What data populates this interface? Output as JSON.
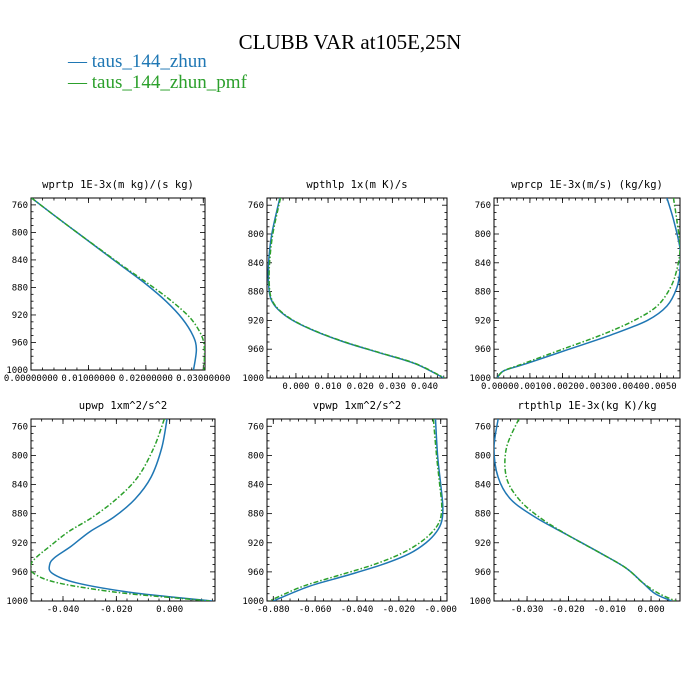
{
  "title": "CLUBB VAR at105E,25N",
  "legend": [
    {
      "label": "taus_144_zhun",
      "color": "#1f77b4",
      "style": "solid"
    },
    {
      "label": "taus_144_zhun_pmf",
      "color": "#2ca02c",
      "style": "dash-dot"
    }
  ],
  "chart_data": [
    {
      "type": "line",
      "title": "wprtp  1E-3x(m kg)/(s kg)",
      "xlim": [
        0,
        0.0303
      ],
      "ylim": [
        750,
        1000
      ],
      "y_inverted": true,
      "xticks": [
        0,
        0.01,
        0.02,
        0.03
      ],
      "xtick_labels": [
        "0.00000000",
        "0.01000000",
        "0.02000000",
        "0.03000000"
      ],
      "yticks": [
        760,
        800,
        840,
        880,
        920,
        960,
        1000
      ],
      "series": [
        {
          "name": "taus_144_zhun",
          "x": [
            0.0001,
            0.004,
            0.008,
            0.012,
            0.016,
            0.02,
            0.0235,
            0.0263,
            0.0282,
            0.0288,
            0.0283
          ],
          "y": [
            750,
            775,
            800,
            825,
            850,
            875,
            900,
            925,
            950,
            970,
            1000
          ]
        },
        {
          "name": "taus_144_zhun_pmf",
          "x": [
            0.0001,
            0.004,
            0.008,
            0.0121,
            0.0162,
            0.0205,
            0.0245,
            0.0278,
            0.0297,
            0.0302,
            0.0301
          ],
          "y": [
            750,
            775,
            800,
            825,
            850,
            875,
            900,
            925,
            950,
            970,
            1000
          ]
        }
      ]
    },
    {
      "type": "line",
      "title": "wpthlp  1x(m K)/s",
      "xlim": [
        -0.009,
        0.047
      ],
      "ylim": [
        750,
        1000
      ],
      "y_inverted": true,
      "xticks": [
        0,
        0.01,
        0.02,
        0.03,
        0.04
      ],
      "xtick_labels": [
        "0.000",
        "0.010",
        "0.020",
        "0.030",
        "0.040"
      ],
      "yticks": [
        760,
        800,
        840,
        880,
        920,
        960,
        1000
      ],
      "series": [
        {
          "name": "taus_144_zhun",
          "x": [
            -0.005,
            -0.0075,
            -0.0085,
            -0.0085,
            -0.0078,
            -0.0055,
            -0.001,
            0.006,
            0.015,
            0.026,
            0.037,
            0.046
          ],
          "y": [
            750,
            800,
            840,
            870,
            890,
            905,
            920,
            935,
            950,
            965,
            980,
            1000
          ]
        },
        {
          "name": "taus_144_zhun_pmf",
          "x": [
            -0.0048,
            -0.0072,
            -0.0082,
            -0.0083,
            -0.0076,
            -0.0053,
            -0.0008,
            0.0062,
            0.0152,
            0.0262,
            0.0372,
            0.0462
          ],
          "y": [
            750,
            800,
            840,
            870,
            890,
            905,
            920,
            935,
            950,
            965,
            980,
            1000
          ]
        }
      ]
    },
    {
      "type": "line",
      "title": "wprcp  1E-3x(m/s) (kg/kg)",
      "xlim": [
        -0.0001,
        0.0056
      ],
      "ylim": [
        750,
        1000
      ],
      "y_inverted": true,
      "xticks": [
        0,
        0.001,
        0.002,
        0.003,
        0.004,
        0.005
      ],
      "xtick_labels": [
        "0.0000",
        "0.0010",
        "0.0020",
        "0.0030",
        "0.0040",
        "0.0050"
      ],
      "yticks": [
        760,
        800,
        840,
        880,
        920,
        960,
        1000
      ],
      "series": [
        {
          "name": "taus_144_zhun",
          "x": [
            0.0052,
            0.0054,
            0.0056,
            0.0056,
            0.0055,
            0.0052,
            0.0046,
            0.0035,
            0.0022,
            0.0009,
            0.0002,
            0.0
          ],
          "y": [
            750,
            780,
            820,
            850,
            875,
            900,
            920,
            940,
            960,
            980,
            990,
            1000
          ]
        },
        {
          "name": "taus_144_zhun_pmf",
          "x": [
            0.0054,
            0.0055,
            0.0056,
            0.0055,
            0.0053,
            0.0049,
            0.0042,
            0.0032,
            0.002,
            0.0008,
            0.0002,
            0.0
          ],
          "y": [
            750,
            780,
            820,
            850,
            875,
            900,
            920,
            940,
            960,
            980,
            990,
            1000
          ]
        }
      ]
    },
    {
      "type": "line",
      "title": "upwp  1xm^2/s^2",
      "xlim": [
        -0.052,
        0.017
      ],
      "ylim": [
        750,
        1000
      ],
      "y_inverted": true,
      "xticks": [
        -0.04,
        -0.02,
        0
      ],
      "xtick_labels": [
        "-0.040",
        "-0.020",
        "0.000"
      ],
      "yticks": [
        760,
        800,
        840,
        880,
        920,
        960,
        1000
      ],
      "series": [
        {
          "name": "taus_144_zhun",
          "x": [
            -0.001,
            -0.003,
            -0.007,
            -0.013,
            -0.021,
            -0.03,
            -0.037,
            -0.043,
            -0.045,
            -0.044,
            -0.035,
            -0.015,
            0.005,
            0.016
          ],
          "y": [
            750,
            790,
            830,
            860,
            885,
            905,
            925,
            940,
            950,
            962,
            975,
            988,
            996,
            1000
          ]
        },
        {
          "name": "taus_144_zhun_pmf",
          "x": [
            -0.002,
            -0.006,
            -0.012,
            -0.02,
            -0.029,
            -0.038,
            -0.045,
            -0.05,
            -0.052,
            -0.051,
            -0.042,
            -0.02,
            0.003,
            0.015
          ],
          "y": [
            750,
            790,
            830,
            860,
            885,
            905,
            925,
            940,
            950,
            962,
            975,
            988,
            996,
            1000
          ]
        }
      ]
    },
    {
      "type": "line",
      "title": "vpwp  1xm^2/s^2",
      "xlim": [
        -0.083,
        0.003
      ],
      "ylim": [
        750,
        1000
      ],
      "y_inverted": true,
      "xticks": [
        -0.08,
        -0.06,
        -0.04,
        -0.02,
        0
      ],
      "xtick_labels": [
        "-0.080",
        "-0.060",
        "-0.040",
        "-0.020",
        "-0.000"
      ],
      "yticks": [
        760,
        800,
        840,
        880,
        920,
        960,
        1000
      ],
      "series": [
        {
          "name": "taus_144_zhun",
          "x": [
            -0.0025,
            -0.0015,
            0.0,
            0.001,
            0.0005,
            -0.002,
            -0.007,
            -0.015,
            -0.028,
            -0.045,
            -0.063,
            -0.08
          ],
          "y": [
            750,
            800,
            840,
            870,
            890,
            905,
            920,
            935,
            950,
            965,
            980,
            1000
          ]
        },
        {
          "name": "taus_144_zhun_pmf",
          "x": [
            -0.0035,
            -0.002,
            -0.0005,
            0.0005,
            -0.0005,
            -0.004,
            -0.01,
            -0.019,
            -0.032,
            -0.049,
            -0.066,
            -0.082
          ],
          "y": [
            750,
            800,
            840,
            870,
            890,
            905,
            920,
            935,
            950,
            965,
            980,
            1000
          ]
        }
      ]
    },
    {
      "type": "line",
      "title": "rtpthlp  1E-3x(kg K)/kg",
      "xlim": [
        -0.038,
        0.007
      ],
      "ylim": [
        750,
        1000
      ],
      "y_inverted": true,
      "xticks": [
        -0.03,
        -0.02,
        -0.01,
        0
      ],
      "xtick_labels": [
        "-0.030",
        "-0.020",
        "-0.010",
        "0.000"
      ],
      "yticks": [
        760,
        800,
        840,
        880,
        920,
        960,
        1000
      ],
      "series": [
        {
          "name": "taus_144_zhun",
          "x": [
            -0.037,
            -0.038,
            -0.037,
            -0.034,
            -0.028,
            -0.02,
            -0.012,
            -0.006,
            -0.002,
            0.001,
            0.005
          ],
          "y": [
            750,
            790,
            830,
            860,
            885,
            910,
            935,
            955,
            975,
            990,
            1000
          ]
        },
        {
          "name": "taus_144_zhun_pmf",
          "x": [
            -0.032,
            -0.035,
            -0.035,
            -0.032,
            -0.027,
            -0.02,
            -0.012,
            -0.006,
            -0.002,
            0.002,
            0.006
          ],
          "y": [
            750,
            790,
            830,
            860,
            885,
            910,
            935,
            955,
            975,
            990,
            1000
          ]
        }
      ]
    }
  ]
}
